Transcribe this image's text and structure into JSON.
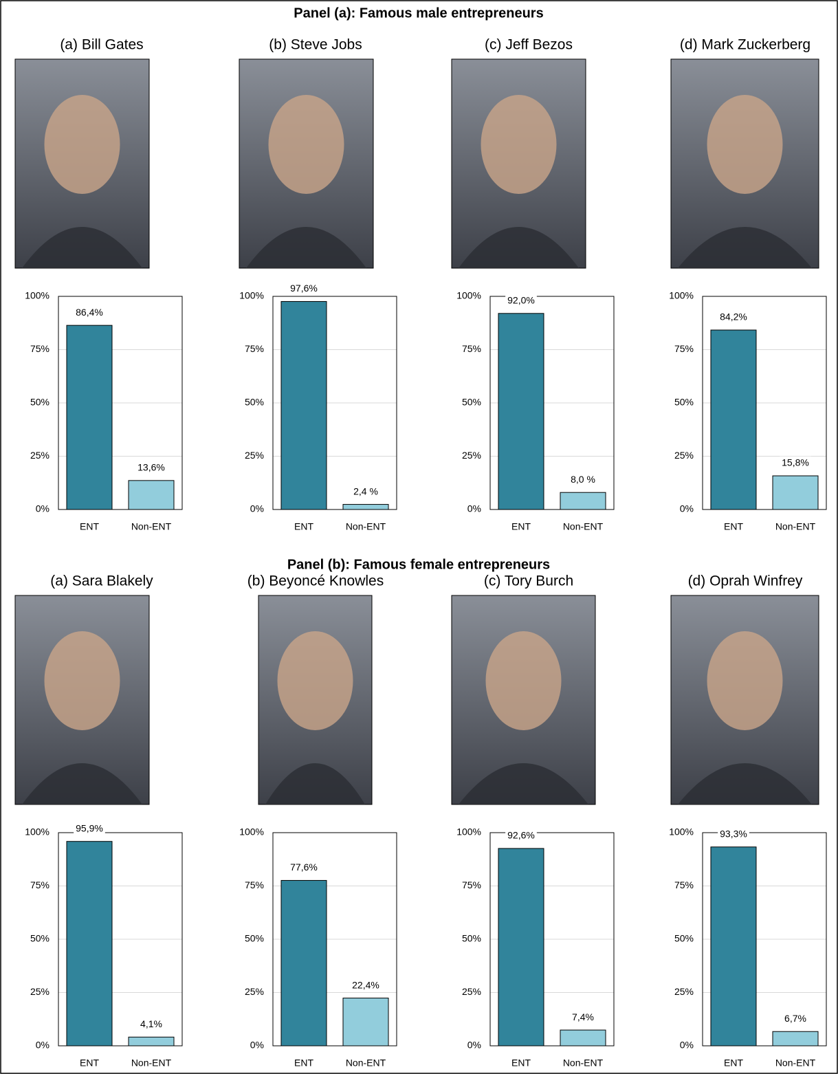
{
  "panels": [
    {
      "title": "Panel (a): Famous male entrepreneurs"
    },
    {
      "title": "Panel (b): Famous female entrepreneurs"
    }
  ],
  "chart_data": [
    {
      "type": "bar",
      "title": "(a) Bill Gates",
      "categories": [
        "ENT",
        "Non-ENT"
      ],
      "values": [
        86.4,
        13.6
      ],
      "value_labels": [
        "86,4%",
        "13,6%"
      ],
      "colors": [
        "#31849b",
        "#92cddc"
      ],
      "ylim": [
        0,
        100
      ],
      "yticks": [
        {
          "value": 0,
          "label": "0%"
        },
        {
          "value": 25,
          "label": "25%"
        },
        {
          "value": 50,
          "label": "50%"
        },
        {
          "value": 75,
          "label": "75%"
        },
        {
          "value": 100,
          "label": "100%"
        }
      ],
      "grid": true
    },
    {
      "type": "bar",
      "title": "(b) Steve Jobs",
      "categories": [
        "ENT",
        "Non-ENT"
      ],
      "values": [
        97.6,
        2.4
      ],
      "value_labels": [
        "97,6%",
        "2,4 %"
      ],
      "colors": [
        "#31849b",
        "#92cddc"
      ],
      "ylim": [
        0,
        100
      ],
      "yticks": [
        {
          "value": 0,
          "label": "0%"
        },
        {
          "value": 25,
          "label": "25%"
        },
        {
          "value": 50,
          "label": "50%"
        },
        {
          "value": 75,
          "label": "75%"
        },
        {
          "value": 100,
          "label": "100%"
        }
      ],
      "grid": true
    },
    {
      "type": "bar",
      "title": "(c) Jeff Bezos",
      "categories": [
        "ENT",
        "Non-ENT"
      ],
      "values": [
        92.0,
        8.0
      ],
      "value_labels": [
        "92,0%",
        "8,0 %"
      ],
      "colors": [
        "#31849b",
        "#92cddc"
      ],
      "ylim": [
        0,
        100
      ],
      "yticks": [
        {
          "value": 0,
          "label": "0%"
        },
        {
          "value": 25,
          "label": "25%"
        },
        {
          "value": 50,
          "label": "50%"
        },
        {
          "value": 75,
          "label": "75%"
        },
        {
          "value": 100,
          "label": "100%"
        }
      ],
      "grid": true
    },
    {
      "type": "bar",
      "title": "(d) Mark Zuckerberg",
      "categories": [
        "ENT",
        "Non-ENT"
      ],
      "values": [
        84.2,
        15.8
      ],
      "value_labels": [
        "84,2%",
        "15,8%"
      ],
      "colors": [
        "#31849b",
        "#92cddc"
      ],
      "ylim": [
        0,
        100
      ],
      "yticks": [
        {
          "value": 0,
          "label": "0%"
        },
        {
          "value": 25,
          "label": "25%"
        },
        {
          "value": 50,
          "label": "50%"
        },
        {
          "value": 75,
          "label": "75%"
        },
        {
          "value": 100,
          "label": "100%"
        }
      ],
      "grid": true
    },
    {
      "type": "bar",
      "title": "(a) Sara Blakely",
      "categories": [
        "ENT",
        "Non-ENT"
      ],
      "values": [
        95.9,
        4.1
      ],
      "value_labels": [
        "95,9%",
        "4,1%"
      ],
      "colors": [
        "#31849b",
        "#92cddc"
      ],
      "ylim": [
        0,
        100
      ],
      "yticks": [
        {
          "value": 0,
          "label": "0%"
        },
        {
          "value": 25,
          "label": "25%"
        },
        {
          "value": 50,
          "label": "50%"
        },
        {
          "value": 75,
          "label": "75%"
        },
        {
          "value": 100,
          "label": "100%"
        }
      ],
      "grid": true
    },
    {
      "type": "bar",
      "title": "(b) Beyoncé Knowles",
      "categories": [
        "ENT",
        "Non-ENT"
      ],
      "values": [
        77.6,
        22.4
      ],
      "value_labels": [
        "77,6%",
        "22,4%"
      ],
      "colors": [
        "#31849b",
        "#92cddc"
      ],
      "ylim": [
        0,
        100
      ],
      "yticks": [
        {
          "value": 0,
          "label": "0%"
        },
        {
          "value": 25,
          "label": "25%"
        },
        {
          "value": 50,
          "label": "50%"
        },
        {
          "value": 75,
          "label": "75%"
        },
        {
          "value": 100,
          "label": "100%"
        }
      ],
      "grid": true
    },
    {
      "type": "bar",
      "title": "(c) Tory Burch",
      "categories": [
        "ENT",
        "Non-ENT"
      ],
      "values": [
        92.6,
        7.4
      ],
      "value_labels": [
        "92,6%",
        "7,4%"
      ],
      "colors": [
        "#31849b",
        "#92cddc"
      ],
      "ylim": [
        0,
        100
      ],
      "yticks": [
        {
          "value": 0,
          "label": "0%"
        },
        {
          "value": 25,
          "label": "25%"
        },
        {
          "value": 50,
          "label": "50%"
        },
        {
          "value": 75,
          "label": "75%"
        },
        {
          "value": 100,
          "label": "100%"
        }
      ],
      "grid": true
    },
    {
      "type": "bar",
      "title": "(d) Oprah Winfrey",
      "categories": [
        "ENT",
        "Non-ENT"
      ],
      "values": [
        93.3,
        6.7
      ],
      "value_labels": [
        "93,3%",
        "6,7%"
      ],
      "colors": [
        "#31849b",
        "#92cddc"
      ],
      "ylim": [
        0,
        100
      ],
      "yticks": [
        {
          "value": 0,
          "label": "0%"
        },
        {
          "value": 25,
          "label": "25%"
        },
        {
          "value": 50,
          "label": "50%"
        },
        {
          "value": 75,
          "label": "75%"
        },
        {
          "value": 100,
          "label": "100%"
        }
      ],
      "grid": true
    }
  ]
}
